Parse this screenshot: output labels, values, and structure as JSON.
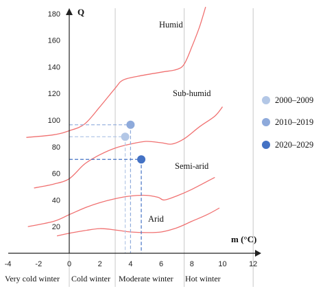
{
  "chart_data": {
    "type": "line",
    "xlabel": "m (°C)",
    "ylabel": "Q",
    "xlim": [
      -4,
      12
    ],
    "ylim": [
      0,
      180
    ],
    "x_ticks": [
      "-4",
      "-2",
      "0",
      "2",
      "4",
      "6",
      "8",
      "10",
      "12"
    ],
    "y_ticks": [
      "20",
      "40",
      "60",
      "80",
      "100",
      "120",
      "140",
      "160",
      "180"
    ],
    "vertical_gridlines_x": [
      0,
      3,
      7.5,
      12
    ],
    "zones": [
      "Very cold winter",
      "Cold winter",
      "Moderate winter",
      "Hot winter"
    ],
    "regions": [
      "Humid",
      "Sub-humid",
      "Semi-arid",
      "Arid"
    ],
    "boundary_curves": [
      {
        "points": [
          [
            -2.8,
            87
          ],
          [
            -1,
            89
          ],
          [
            0,
            92
          ],
          [
            1,
            97
          ],
          [
            2,
            110
          ],
          [
            3,
            124
          ],
          [
            3.5,
            130
          ],
          [
            4.5,
            133
          ],
          [
            6,
            136
          ],
          [
            7,
            138
          ],
          [
            7.5,
            142
          ],
          [
            8,
            155
          ],
          [
            8.5,
            170
          ],
          [
            8.9,
            185
          ]
        ]
      },
      {
        "points": [
          [
            -2.3,
            49
          ],
          [
            -1,
            52
          ],
          [
            0,
            56
          ],
          [
            1,
            67
          ],
          [
            2,
            74
          ],
          [
            3,
            79
          ],
          [
            4,
            82
          ],
          [
            5,
            84
          ],
          [
            6,
            83
          ],
          [
            6.7,
            82
          ],
          [
            7.5,
            86
          ],
          [
            8.5,
            95
          ],
          [
            9.5,
            103
          ],
          [
            10,
            110
          ]
        ]
      },
      {
        "points": [
          [
            -2.7,
            20
          ],
          [
            -1,
            24
          ],
          [
            0,
            29
          ],
          [
            1,
            34
          ],
          [
            2,
            38
          ],
          [
            3,
            41
          ],
          [
            4,
            43
          ],
          [
            5,
            43.5
          ],
          [
            5.8,
            42
          ],
          [
            6.2,
            40
          ],
          [
            7,
            43
          ],
          [
            8,
            48
          ],
          [
            9.5,
            57
          ]
        ]
      },
      {
        "points": [
          [
            -0.8,
            13
          ],
          [
            0,
            15
          ],
          [
            1,
            17
          ],
          [
            2,
            18.5
          ],
          [
            3,
            17.5
          ],
          [
            4,
            16
          ],
          [
            5,
            15.5
          ],
          [
            6,
            16
          ],
          [
            7,
            19
          ],
          [
            8,
            24
          ],
          [
            9,
            29
          ],
          [
            9.8,
            34
          ]
        ]
      }
    ],
    "series": [
      {
        "name": "2000–2009",
        "color": "#b3c7e6",
        "x": 3.65,
        "y": 87.5
      },
      {
        "name": "2010–2019",
        "color": "#8eaadb",
        "x": 4.0,
        "y": 96.5
      },
      {
        "name": "2020–2029",
        "color": "#4472c4",
        "x": 4.7,
        "y": 70.5
      }
    ],
    "colors": {
      "curves": "#f07070",
      "grid": "#c8c8c8",
      "axis": "#222222"
    }
  }
}
